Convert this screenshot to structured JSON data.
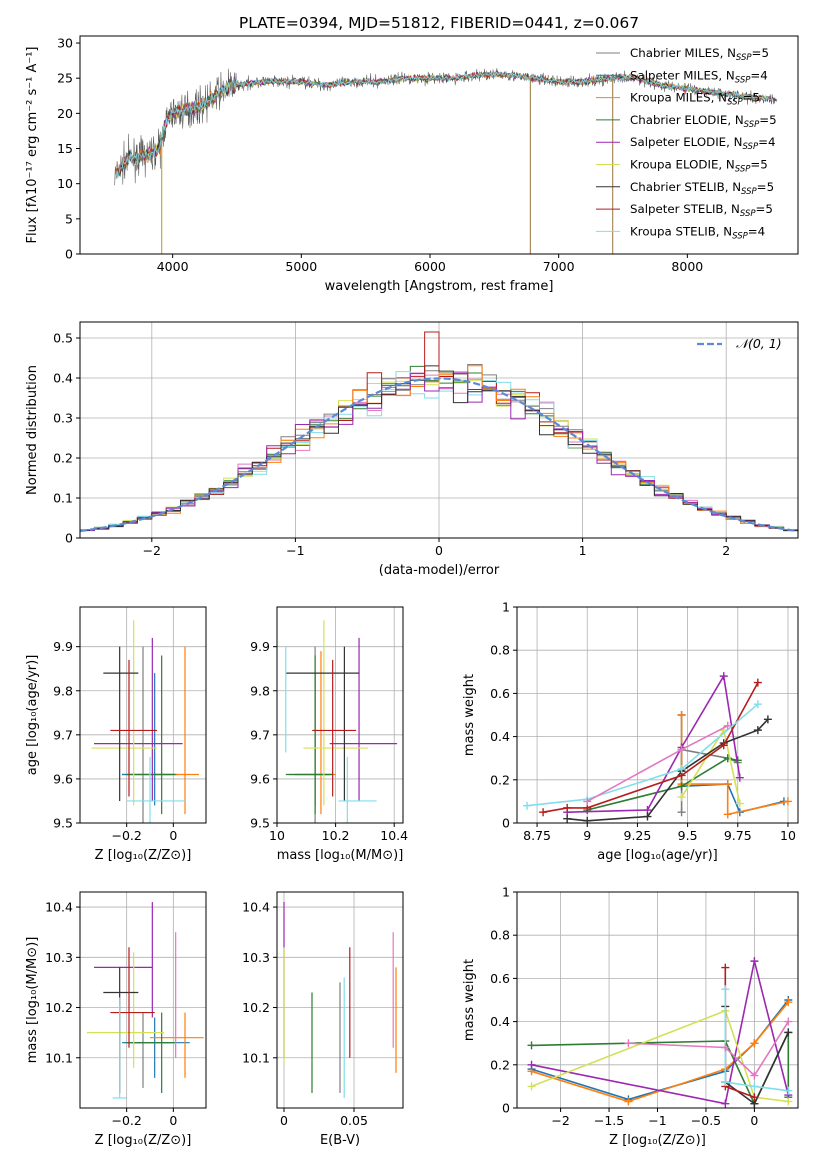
{
  "figure": {
    "title": "PLATE=0394, MJD=51812, FIBERID=0441, z=0.067"
  },
  "legend_labels": [
    {
      "name": "Chabrier MILES",
      "n": "5",
      "color": "#7f7f7f"
    },
    {
      "name": "Salpeter MILES",
      "n": "4",
      "color": "#1f77b4"
    },
    {
      "name": "Kroupa MILES",
      "n": "5",
      "color": "#ff7f0e"
    },
    {
      "name": "Chabrier ELODIE",
      "n": "5",
      "color": "#2e7d32"
    },
    {
      "name": "Salpeter ELODIE",
      "n": "4",
      "color": "#9c27b0"
    },
    {
      "name": "Kroupa ELODIE",
      "n": "5",
      "color": "#d4e157"
    },
    {
      "name": "Chabrier STELIB",
      "n": "5",
      "color": "#333333"
    },
    {
      "name": "Salpeter STELIB",
      "n": "5",
      "color": "#b71c1c"
    },
    {
      "name": "Kroupa STELIB",
      "n": "4",
      "color": "#80deea"
    }
  ],
  "chart_data": [
    {
      "type": "line",
      "panel": "spectrum",
      "xlabel": "wavelength [Angstrom, rest frame]",
      "ylabel": "Flux [fλ10⁻¹⁷ erg cm⁻² s⁻¹ A⁻¹]",
      "xlim": [
        3280,
        8860
      ],
      "ylim": [
        0,
        31
      ],
      "xticks": [
        4000,
        5000,
        6000,
        7000,
        8000
      ],
      "yticks": [
        0,
        5,
        10,
        15,
        20,
        25,
        30
      ],
      "grid": false,
      "legend_position": "right",
      "continuum": [
        [
          3550,
          11
        ],
        [
          3650,
          13.5
        ],
        [
          3800,
          14
        ],
        [
          3900,
          15
        ],
        [
          3950,
          19
        ],
        [
          4000,
          20
        ],
        [
          4100,
          20.5
        ],
        [
          4200,
          21
        ],
        [
          4300,
          22
        ],
        [
          4400,
          23.5
        ],
        [
          4500,
          24
        ],
        [
          4700,
          24.5
        ],
        [
          5000,
          24.5
        ],
        [
          5200,
          24
        ],
        [
          5400,
          24.5
        ],
        [
          5600,
          24.5
        ],
        [
          5800,
          25
        ],
        [
          6000,
          25
        ],
        [
          6200,
          25
        ],
        [
          6400,
          25.5
        ],
        [
          6600,
          25.5
        ],
        [
          6800,
          25
        ],
        [
          7000,
          24.5
        ],
        [
          7200,
          24.5
        ],
        [
          7400,
          25
        ],
        [
          7600,
          25
        ],
        [
          7800,
          24
        ],
        [
          8000,
          23.5
        ],
        [
          8200,
          23
        ],
        [
          8400,
          22.5
        ],
        [
          8700,
          22
        ]
      ],
      "sharp_drops": [
        [
          3915,
          0
        ],
        [
          6780,
          0
        ],
        [
          7420,
          0
        ]
      ]
    },
    {
      "type": "line",
      "panel": "residual-histogram",
      "xlabel": "(data-model)/error",
      "ylabel": "Normed distribution",
      "xlim": [
        -2.5,
        2.5
      ],
      "ylim": [
        0,
        0.54
      ],
      "xticks": [
        -2,
        -1,
        0,
        1,
        2
      ],
      "yticks": [
        0.0,
        0.1,
        0.2,
        0.3,
        0.4,
        0.5
      ],
      "grid": true,
      "legend": [
        {
          "label": "𝒩(0, 1)",
          "style": "dashed",
          "color": "#5b8bd6"
        }
      ],
      "legend_position": "top-right",
      "reference_curve": "standard normal N(0,1)",
      "bin_width": 0.1
    },
    {
      "type": "scatter",
      "panel": "age-vs-Z",
      "xlabel": "Z [log₁₀(Z/Z⊙)]",
      "ylabel": "age  [log₁₀(age/yr)]",
      "xlim": [
        -0.4,
        0.14
      ],
      "ylim": [
        9.5,
        9.99
      ],
      "xticks": [
        -0.2,
        0.0
      ],
      "yticks": [
        9.5,
        9.6,
        9.7,
        9.8,
        9.9
      ],
      "grid": true,
      "points": [
        {
          "x": -0.13,
          "y": 9.61,
          "xerr": [
            0.09,
            0.12
          ],
          "yerr": [
            0.11,
            0.29
          ],
          "model": 0
        },
        {
          "x": -0.08,
          "y": 9.61,
          "xerr": [
            0.14,
            0.1
          ],
          "yerr": [
            0.07,
            0.23
          ],
          "model": 1
        },
        {
          "x": 0.05,
          "y": 9.61,
          "xerr": [
            0.15,
            0.06
          ],
          "yerr": [
            0.09,
            0.29
          ],
          "model": 2
        },
        {
          "x": -0.05,
          "y": 9.61,
          "xerr": [
            0.15,
            0.06
          ],
          "yerr": [
            0.09,
            0.27
          ],
          "model": 3
        },
        {
          "x": -0.09,
          "y": 9.68,
          "xerr": [
            0.25,
            0.13
          ],
          "yerr": [
            0.13,
            0.24
          ],
          "model": 4
        },
        {
          "x": -0.17,
          "y": 9.67,
          "xerr": [
            0.18,
            0.1
          ],
          "yerr": [
            0.13,
            0.29
          ],
          "model": 5
        },
        {
          "x": -0.23,
          "y": 9.84,
          "xerr": [
            0.07,
            0.08
          ],
          "yerr": [
            0.29,
            0.06
          ],
          "model": 6
        },
        {
          "x": -0.19,
          "y": 9.71,
          "xerr": [
            0.08,
            0.12
          ],
          "yerr": [
            0.15,
            0.16
          ],
          "model": 7
        },
        {
          "x": -0.1,
          "y": 9.55,
          "xerr": [
            0.1,
            0.15
          ],
          "yerr": [
            0.05,
            0.1
          ],
          "model": 8
        }
      ]
    },
    {
      "type": "scatter",
      "panel": "age-vs-mass",
      "xlabel": "mass [log₁₀(M/M⊙)]",
      "ylabel": "",
      "xlim": [
        10.0,
        10.43
      ],
      "ylim": [
        9.5,
        9.99
      ],
      "xticks": [
        10.0,
        10.2,
        10.4
      ],
      "yticks": [
        9.5,
        9.6,
        9.7,
        9.8,
        9.9
      ],
      "grid": true,
      "points": [
        {
          "x": 10.13,
          "y": 9.61,
          "xerr": [
            0.09,
            0.06
          ],
          "yerr": [
            0.11,
            0.29
          ],
          "model": 0
        },
        {
          "x": 10.13,
          "y": 9.61,
          "xerr": [
            0.07,
            0.05
          ],
          "yerr": [
            0.07,
            0.23
          ],
          "model": 1
        },
        {
          "x": 10.15,
          "y": 9.61,
          "xerr": [
            0.08,
            0.05
          ],
          "yerr": [
            0.09,
            0.28
          ],
          "model": 2
        },
        {
          "x": 10.13,
          "y": 9.61,
          "xerr": [
            0.1,
            0.06
          ],
          "yerr": [
            0.09,
            0.27
          ],
          "model": 3
        },
        {
          "x": 10.28,
          "y": 9.68,
          "xerr": [
            0.1,
            0.13
          ],
          "yerr": [
            0.13,
            0.24
          ],
          "model": 4
        },
        {
          "x": 10.16,
          "y": 9.67,
          "xerr": [
            0.07,
            0.15
          ],
          "yerr": [
            0.13,
            0.29
          ],
          "model": 5
        },
        {
          "x": 10.23,
          "y": 9.84,
          "xerr": [
            0.2,
            0.05
          ],
          "yerr": [
            0.29,
            0.06
          ],
          "model": 6
        },
        {
          "x": 10.19,
          "y": 9.71,
          "xerr": [
            0.07,
            0.08
          ],
          "yerr": [
            0.15,
            0.16
          ],
          "model": 7
        },
        {
          "x": 10.24,
          "y": 9.55,
          "xerr": [
            0.03,
            0.1
          ],
          "yerr": [
            0.06,
            0.1
          ],
          "model": 8
        },
        {
          "x": 10.03,
          "y": 9.8,
          "xerr": [
            0.0,
            0.0
          ],
          "yerr": [
            0.14,
            0.1
          ],
          "model": 8
        }
      ]
    },
    {
      "type": "line",
      "panel": "mass-weight-vs-age",
      "xlabel": "age  [log₁₀(age/yr)]",
      "ylabel": "mass weight",
      "xlim": [
        8.65,
        10.05
      ],
      "ylim": [
        0.0,
        1.0
      ],
      "xticks": [
        8.75,
        9.0,
        9.25,
        9.5,
        9.75,
        10.0
      ],
      "yticks": [
        0.0,
        0.2,
        0.4,
        0.6,
        0.8,
        1.0
      ],
      "grid": true,
      "series": [
        {
          "model": 0,
          "x": [
            9.47,
            9.47,
            9.7,
            9.75
          ],
          "y": [
            0.05,
            0.34,
            0.3,
            0.28
          ]
        },
        {
          "model": 1,
          "x": [
            9.47,
            9.47,
            9.7,
            9.76,
            9.98
          ],
          "y": [
            0.5,
            0.17,
            0.18,
            0.05,
            0.1
          ]
        },
        {
          "model": 2,
          "x": [
            9.47,
            9.47,
            9.7,
            9.7,
            10.0
          ],
          "y": [
            0.5,
            0.18,
            0.18,
            0.04,
            0.1
          ]
        },
        {
          "model": 3,
          "x": [
            9.0,
            9.47,
            9.7,
            9.75
          ],
          "y": [
            0.06,
            0.17,
            0.3,
            0.29
          ]
        },
        {
          "model": 4,
          "x": [
            8.9,
            9.3,
            9.47,
            9.68,
            9.76
          ],
          "y": [
            0.05,
            0.06,
            0.35,
            0.68,
            0.21
          ]
        },
        {
          "model": 5,
          "x": [
            9.47,
            9.68,
            9.76
          ],
          "y": [
            0.12,
            0.43,
            0.09
          ]
        },
        {
          "model": 6,
          "x": [
            8.9,
            9.0,
            9.3,
            9.47,
            9.68,
            9.85,
            9.9
          ],
          "y": [
            0.02,
            0.01,
            0.03,
            0.24,
            0.37,
            0.43,
            0.48
          ]
        },
        {
          "model": 7,
          "x": [
            8.78,
            8.9,
            9.0,
            9.47,
            9.68,
            9.85
          ],
          "y": [
            0.05,
            0.07,
            0.07,
            0.22,
            0.36,
            0.65
          ]
        },
        {
          "model": 8,
          "x": [
            8.7,
            9.0,
            9.47,
            9.85
          ],
          "y": [
            0.08,
            0.11,
            0.25,
            0.55
          ]
        },
        {
          "model": "pink",
          "x": [
            9.0,
            9.47,
            9.7
          ],
          "y": [
            0.1,
            0.34,
            0.45
          ]
        }
      ]
    },
    {
      "type": "scatter",
      "panel": "mass-vs-Z",
      "xlabel": "Z [log₁₀(Z/Z⊙)]",
      "ylabel": "mass [log₁₀(M/M⊙)]",
      "xlim": [
        -0.4,
        0.14
      ],
      "ylim": [
        10.0,
        10.43
      ],
      "xticks": [
        -0.2,
        0.0
      ],
      "yticks": [
        10.1,
        10.2,
        10.3,
        10.4
      ],
      "grid": true,
      "points": [
        {
          "x": -0.13,
          "y": 10.13,
          "xerr": [
            0.08,
            0.12
          ],
          "yerr": [
            0.09,
            0.06
          ],
          "model": 0
        },
        {
          "x": -0.08,
          "y": 10.13,
          "xerr": [
            0.14,
            0.15
          ],
          "yerr": [
            0.07,
            0.05
          ],
          "model": 1
        },
        {
          "x": 0.05,
          "y": 10.14,
          "xerr": [
            0.15,
            0.08
          ],
          "yerr": [
            0.08,
            0.05
          ],
          "model": 2
        },
        {
          "x": -0.05,
          "y": 10.13,
          "xerr": [
            0.15,
            0.06
          ],
          "yerr": [
            0.1,
            0.06
          ],
          "model": 3
        },
        {
          "x": -0.09,
          "y": 10.28,
          "xerr": [
            0.25,
            0.0
          ],
          "yerr": [
            0.1,
            0.13
          ],
          "model": 4
        },
        {
          "x": -0.17,
          "y": 10.15,
          "xerr": [
            0.2,
            0.13
          ],
          "yerr": [
            0.07,
            0.16
          ],
          "model": 5
        },
        {
          "x": -0.23,
          "y": 10.23,
          "xerr": [
            0.07,
            0.08
          ],
          "yerr": [
            0.2,
            0.05
          ],
          "model": 6
        },
        {
          "x": -0.19,
          "y": 10.19,
          "xerr": [
            0.08,
            0.11
          ],
          "yerr": [
            0.07,
            0.13
          ],
          "model": 7
        },
        {
          "x": -0.23,
          "y": 10.02,
          "xerr": [
            0.03,
            0.03
          ],
          "yerr": [
            0.0,
            0.2
          ],
          "model": 8
        },
        {
          "x": 0.01,
          "y": 10.3,
          "xerr": [
            0.0,
            0.0
          ],
          "yerr": [
            0.2,
            0.05
          ],
          "model": "pink"
        }
      ]
    },
    {
      "type": "scatter",
      "panel": "mass-vs-EBV",
      "xlabel": "E(B-V)",
      "ylabel": "",
      "xlim": [
        -0.005,
        0.085
      ],
      "ylim": [
        10.0,
        10.43
      ],
      "xticks": [
        0.0,
        0.05
      ],
      "yticks": [
        10.1,
        10.2,
        10.3,
        10.4
      ],
      "grid": true,
      "points": [
        {
          "x": 0.0,
          "y": 10.2,
          "xerr": [
            0,
            0
          ],
          "yerr": [
            0.1,
            0.21
          ],
          "model": 4
        },
        {
          "x": 0.0,
          "y": 10.2,
          "xerr": [
            0,
            0
          ],
          "yerr": [
            0.11,
            0.12
          ],
          "model": 5
        },
        {
          "x": 0.02,
          "y": 10.13,
          "xerr": [
            0,
            0
          ],
          "yerr": [
            0.1,
            0.1
          ],
          "model": 3
        },
        {
          "x": 0.04,
          "y": 10.13,
          "xerr": [
            0,
            0
          ],
          "yerr": [
            0.1,
            0.12
          ],
          "model": 0
        },
        {
          "x": 0.043,
          "y": 10.14,
          "xerr": [
            0,
            0
          ],
          "yerr": [
            0.12,
            0.12
          ],
          "model": 8
        },
        {
          "x": 0.047,
          "y": 10.2,
          "xerr": [
            0,
            0
          ],
          "yerr": [
            0.1,
            0.12
          ],
          "model": 7
        },
        {
          "x": 0.078,
          "y": 10.25,
          "xerr": [
            0,
            0
          ],
          "yerr": [
            0.13,
            0.1
          ],
          "model": "pink"
        },
        {
          "x": 0.08,
          "y": 10.17,
          "xerr": [
            0,
            0
          ],
          "yerr": [
            0.1,
            0.11
          ],
          "model": 2
        }
      ]
    },
    {
      "type": "line",
      "panel": "mass-weight-vs-Z",
      "xlabel": "Z [log₁₀(Z/Z⊙)]",
      "ylabel": "mass weight",
      "xlim": [
        -2.45,
        0.45
      ],
      "ylim": [
        0.0,
        1.0
      ],
      "xticks": [
        -2.0,
        -1.5,
        -1.0,
        -0.5,
        0.0
      ],
      "yticks": [
        0.0,
        0.2,
        0.4,
        0.6,
        0.8,
        1.0
      ],
      "grid": true,
      "series": [
        {
          "model": 1,
          "x": [
            -2.3,
            -1.3,
            -0.3,
            0.0,
            0.35
          ],
          "y": [
            0.18,
            0.04,
            0.17,
            0.3,
            0.5
          ]
        },
        {
          "model": 2,
          "x": [
            -2.3,
            -1.3,
            -0.3,
            0.0,
            0.35
          ],
          "y": [
            0.17,
            0.03,
            0.18,
            0.3,
            0.49
          ]
        },
        {
          "model": 3,
          "x": [
            -2.3,
            -0.3,
            0.0,
            0.35,
            0.35
          ],
          "y": [
            0.29,
            0.31,
            0.02,
            0.35,
            0.05
          ]
        },
        {
          "model": 4,
          "x": [
            -2.3,
            -0.3,
            0.0,
            0.35
          ],
          "y": [
            0.2,
            0.02,
            0.68,
            0.06
          ]
        },
        {
          "model": 5,
          "x": [
            -2.3,
            -0.3,
            0.0,
            0.35
          ],
          "y": [
            0.1,
            0.45,
            0.05,
            0.03
          ]
        },
        {
          "model": 6,
          "x": [
            -0.3,
            -0.3,
            0.0,
            0.35
          ],
          "y": [
            0.47,
            0.12,
            0.02,
            0.35
          ]
        },
        {
          "model": 7,
          "x": [
            -0.3,
            -0.3,
            0.0
          ],
          "y": [
            0.65,
            0.1,
            0.05
          ]
        },
        {
          "model": 8,
          "x": [
            -0.3,
            -0.3,
            0.0,
            0.35
          ],
          "y": [
            0.55,
            0.12,
            0.1,
            0.08
          ]
        },
        {
          "model": "pink",
          "x": [
            -1.3,
            -0.3,
            0.0,
            0.35
          ],
          "y": [
            0.3,
            0.28,
            0.15,
            0.4
          ]
        }
      ]
    }
  ]
}
